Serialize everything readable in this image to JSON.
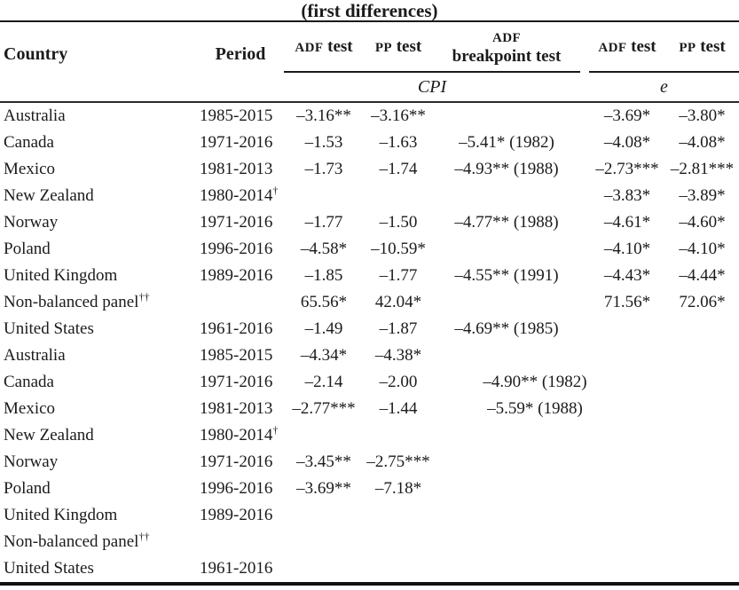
{
  "title": "(first differences)",
  "colors": {
    "background": "#ffffff",
    "text": "#1b1b1b",
    "rule": "#1a1a1a"
  },
  "header": {
    "country": "Country",
    "period": "Period",
    "adf_abbr": "ADF",
    "pp_abbr": "PP",
    "test_word": "test",
    "breakpoint_label": "breakpoint test",
    "cpi_group_label": "CPI",
    "e_group_label": "e"
  },
  "rows": [
    {
      "country": "Australia",
      "country_sup": "",
      "period": "1985-2015",
      "period_sup": "",
      "adf_cpi": "–3.16**",
      "pp_cpi": "–3.16**",
      "bp": "",
      "adf_e": "–3.69*",
      "pp_e": "–3.80*",
      "group": 1
    },
    {
      "country": "Canada",
      "country_sup": "",
      "period": "1971-2016",
      "period_sup": "",
      "adf_cpi": "–1.53",
      "pp_cpi": "–1.63",
      "bp": "–5.41* (1982)",
      "adf_e": "–4.08*",
      "pp_e": "–4.08*",
      "group": 1
    },
    {
      "country": "Mexico",
      "country_sup": "",
      "period": "1981-2013",
      "period_sup": "",
      "adf_cpi": "–1.73",
      "pp_cpi": "–1.74",
      "bp": "–4.93** (1988)",
      "adf_e": "–2.73***",
      "pp_e": "–2.81***",
      "group": 1
    },
    {
      "country": "New Zealand",
      "country_sup": "",
      "period": "1980-2014",
      "period_sup": "†",
      "adf_cpi": "",
      "pp_cpi": "",
      "bp": "",
      "adf_e": "–3.83*",
      "pp_e": "–3.89*",
      "group": 1
    },
    {
      "country": "Norway",
      "country_sup": "",
      "period": "1971-2016",
      "period_sup": "",
      "adf_cpi": "–1.77",
      "pp_cpi": "–1.50",
      "bp": "–4.77** (1988)",
      "adf_e": "–4.61*",
      "pp_e": "–4.60*",
      "group": 1
    },
    {
      "country": "Poland",
      "country_sup": "",
      "period": "1996-2016",
      "period_sup": "",
      "adf_cpi": "–4.58*",
      "pp_cpi": "–10.59*",
      "bp": "",
      "adf_e": "–4.10*",
      "pp_e": "–4.10*",
      "group": 1
    },
    {
      "country": "United Kingdom",
      "country_sup": "",
      "period": "1989-2016",
      "period_sup": "",
      "adf_cpi": "–1.85",
      "pp_cpi": "–1.77",
      "bp": "–4.55** (1991)",
      "adf_e": "–4.43*",
      "pp_e": "–4.44*",
      "group": 1
    },
    {
      "country": "Non-balanced panel",
      "country_sup": "††",
      "period": "",
      "period_sup": "",
      "adf_cpi": "65.56*",
      "pp_cpi": "42.04*",
      "bp": "",
      "adf_e": "71.56*",
      "pp_e": "72.06*",
      "group": 1
    },
    {
      "country": "United States",
      "country_sup": "",
      "period": "1961-2016",
      "period_sup": "",
      "adf_cpi": "–1.49",
      "pp_cpi": "–1.87",
      "bp": "–4.69** (1985)",
      "adf_e": "",
      "pp_e": "",
      "group": 1
    },
    {
      "country": "Australia",
      "country_sup": "",
      "period": "1985-2015",
      "period_sup": "",
      "adf_cpi": "–4.34*",
      "pp_cpi": "–4.38*",
      "bp": "",
      "adf_e": "",
      "pp_e": "",
      "group": 2
    },
    {
      "country": "Canada",
      "country_sup": "",
      "period": "1971-2016",
      "period_sup": "",
      "adf_cpi": "–2.14",
      "pp_cpi": "–2.00",
      "bp": "–4.90** (1982)",
      "adf_e": "",
      "pp_e": "",
      "group": 2
    },
    {
      "country": "Mexico",
      "country_sup": "",
      "period": "1981-2013",
      "period_sup": "",
      "adf_cpi": "–2.77***",
      "pp_cpi": "–1.44",
      "bp": "–5.59* (1988)",
      "adf_e": "",
      "pp_e": "",
      "group": 2
    },
    {
      "country": "New Zealand",
      "country_sup": "",
      "period": "1980-2014",
      "period_sup": "†",
      "adf_cpi": "",
      "pp_cpi": "",
      "bp": "",
      "adf_e": "",
      "pp_e": "",
      "group": 2
    },
    {
      "country": "Norway",
      "country_sup": "",
      "period": "1971-2016",
      "period_sup": "",
      "adf_cpi": "–3.45**",
      "pp_cpi": "–2.75***",
      "bp": "",
      "adf_e": "",
      "pp_e": "",
      "group": 2
    },
    {
      "country": "Poland",
      "country_sup": "",
      "period": "1996-2016",
      "period_sup": "",
      "adf_cpi": "–3.69**",
      "pp_cpi": "–7.18*",
      "bp": "",
      "adf_e": "",
      "pp_e": "",
      "group": 2
    },
    {
      "country": "United Kingdom",
      "country_sup": "",
      "period": "1989-2016",
      "period_sup": "",
      "adf_cpi": "",
      "pp_cpi": "",
      "bp": "",
      "adf_e": "",
      "pp_e": "",
      "group": 2
    },
    {
      "country": "Non-balanced panel",
      "country_sup": "††",
      "period": "",
      "period_sup": "",
      "adf_cpi": "",
      "pp_cpi": "",
      "bp": "",
      "adf_e": "",
      "pp_e": "",
      "group": 2
    },
    {
      "country": "United States",
      "country_sup": "",
      "period": "1961-2016",
      "period_sup": "",
      "adf_cpi": "",
      "pp_cpi": "",
      "bp": "",
      "adf_e": "",
      "pp_e": "",
      "group": 2
    }
  ]
}
